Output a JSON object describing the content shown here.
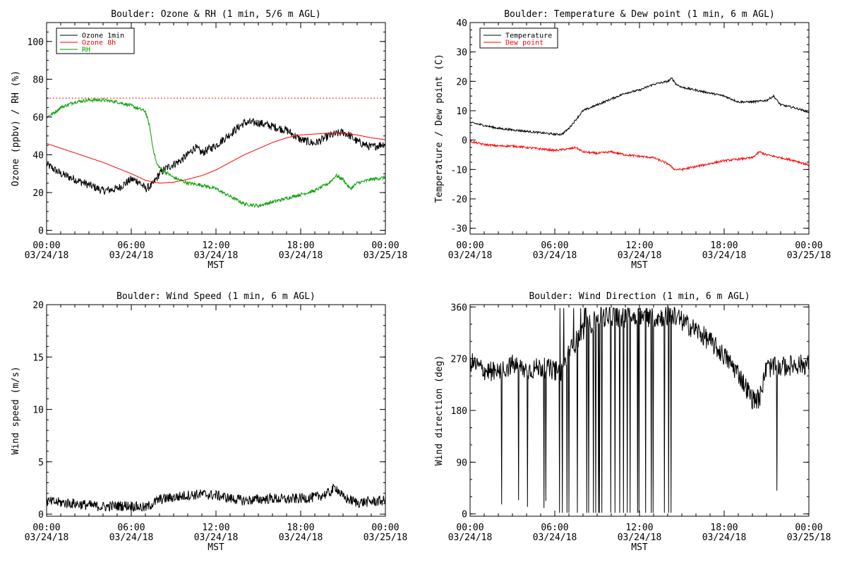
{
  "chart_data": [
    {
      "type": "line",
      "title": "Boulder: Ozone & RH (1 min, 5/6 m AGL)",
      "xlabel": "MST",
      "ylabel": "Ozone (ppbv) / RH (%)",
      "xticks": [
        [
          "00:00",
          "03/24/18"
        ],
        [
          "06:00",
          "03/24/18"
        ],
        [
          "12:00",
          "03/24/18"
        ],
        [
          "18:00",
          "03/24/18"
        ],
        [
          "00:00",
          "03/25/18"
        ]
      ],
      "xlim_hours": [
        0,
        24
      ],
      "ylim": [
        -2,
        110
      ],
      "yticks": [
        0,
        20,
        40,
        60,
        80,
        100
      ],
      "legend_position": "top-left",
      "reference_line": {
        "y": 70,
        "style": "dotted",
        "color": "#ff0000"
      },
      "series": [
        {
          "name": "Ozone 1min",
          "color": "#000000",
          "noise": 2.2,
          "x": [
            0,
            1,
            2,
            3,
            4,
            5,
            6,
            6.5,
            7,
            7.5,
            8,
            8.5,
            9,
            9.5,
            10,
            10.5,
            11,
            12,
            13,
            14,
            15,
            16,
            17,
            18,
            19,
            20,
            21,
            21.5,
            22,
            23,
            24
          ],
          "y": [
            35,
            30,
            27,
            24,
            21,
            22,
            27,
            26,
            22,
            24,
            30,
            33,
            35,
            37,
            40,
            44,
            41,
            45,
            51,
            57,
            57,
            55,
            53,
            48,
            46,
            50,
            52,
            50,
            47,
            44,
            46
          ]
        },
        {
          "name": "Ozone 8h",
          "color": "#ff0000",
          "noise": 0,
          "x": [
            0,
            2,
            4,
            6,
            7,
            8,
            9,
            10,
            11,
            12,
            14,
            16,
            17,
            18,
            20,
            21,
            22,
            23,
            24
          ],
          "y": [
            46,
            41,
            36,
            30,
            26.5,
            25,
            25.5,
            27,
            29,
            32,
            40,
            46.5,
            49,
            50.5,
            51.5,
            51.5,
            50.5,
            49,
            48
          ]
        },
        {
          "name": "RH",
          "color": "#00a000",
          "noise": 0.9,
          "x": [
            0,
            0.5,
            1,
            2,
            3,
            4,
            5,
            6,
            7,
            7.3,
            7.5,
            7.8,
            8.2,
            9,
            10,
            11,
            12,
            13,
            14,
            15,
            16,
            17,
            18,
            19,
            20,
            20.5,
            21,
            21.5,
            22,
            23,
            24
          ],
          "y": [
            60,
            62,
            65,
            68,
            69,
            69,
            68,
            66,
            63,
            55,
            45,
            35,
            32,
            28,
            25,
            24,
            22,
            18,
            14,
            13,
            15,
            17,
            19,
            21,
            25,
            29,
            27,
            22,
            25,
            27,
            28
          ]
        }
      ]
    },
    {
      "type": "line",
      "title": "Boulder: Temperature & Dew point (1 min, 6 m AGL)",
      "xlabel": "MST",
      "ylabel": "Temperature / Dew point (C)",
      "xticks": [
        [
          "00:00",
          "03/24/18"
        ],
        [
          "06:00",
          "03/24/18"
        ],
        [
          "12:00",
          "03/24/18"
        ],
        [
          "18:00",
          "03/24/18"
        ],
        [
          "00:00",
          "03/25/18"
        ]
      ],
      "xlim_hours": [
        0,
        24
      ],
      "ylim": [
        -32,
        40
      ],
      "yticks": [
        -30,
        -20,
        -10,
        0,
        10,
        20,
        30,
        40
      ],
      "legend_position": "top-left",
      "series": [
        {
          "name": "Temperature",
          "color": "#000000",
          "noise": 0.35,
          "x": [
            0,
            1,
            2,
            3,
            4,
            5,
            6,
            6.5,
            7,
            7.5,
            8,
            9,
            10,
            11,
            12,
            13,
            14,
            14.3,
            14.6,
            15,
            16,
            17,
            18,
            19,
            20,
            21,
            21.5,
            22,
            23,
            24
          ],
          "y": [
            6,
            5,
            4,
            3.5,
            3,
            2.5,
            2,
            2,
            4,
            7,
            10,
            12,
            14,
            16,
            17,
            19,
            20,
            21,
            19,
            18,
            17,
            16,
            15,
            13,
            13,
            13.5,
            15,
            12,
            11,
            9.5
          ]
        },
        {
          "name": "Dew point",
          "color": "#ff0000",
          "noise": 0.35,
          "x": [
            0,
            1,
            2,
            3,
            4,
            5,
            6,
            7,
            7.5,
            8,
            9,
            10,
            11,
            12,
            13,
            14,
            14.5,
            15,
            16,
            17,
            18,
            19,
            20,
            20.5,
            21,
            22,
            23,
            24
          ],
          "y": [
            -0.5,
            -1.5,
            -2,
            -2,
            -2.5,
            -3,
            -3.5,
            -3,
            -2.5,
            -4,
            -4.5,
            -4,
            -5,
            -5.5,
            -6,
            -8,
            -10,
            -10,
            -9,
            -8,
            -7,
            -6.5,
            -6,
            -4,
            -5,
            -6,
            -7,
            -8.5
          ]
        }
      ]
    },
    {
      "type": "line",
      "title": "Boulder: Wind Speed (1 min, 6 m AGL)",
      "xlabel": "MST",
      "ylabel": "Wind speed (m/s)",
      "xticks": [
        [
          "00:00",
          "03/24/18"
        ],
        [
          "06:00",
          "03/24/18"
        ],
        [
          "12:00",
          "03/24/18"
        ],
        [
          "18:00",
          "03/24/18"
        ],
        [
          "00:00",
          "03/25/18"
        ]
      ],
      "xlim_hours": [
        0,
        24
      ],
      "ylim": [
        -0.2,
        20
      ],
      "yticks": [
        0,
        5,
        10,
        15,
        20
      ],
      "series": [
        {
          "name": "",
          "color": "#000000",
          "noise": 0.5,
          "x": [
            0,
            2,
            4,
            5,
            6,
            6.5,
            7,
            8,
            9,
            10,
            11,
            12,
            13,
            14,
            15,
            16,
            17,
            18,
            19,
            20,
            20.5,
            21,
            22,
            23,
            24
          ],
          "y": [
            1.2,
            1.0,
            0.7,
            0.8,
            0.8,
            0.7,
            0.6,
            1.4,
            1.6,
            1.8,
            1.9,
            1.8,
            1.5,
            1.3,
            1.4,
            1.5,
            1.4,
            1.5,
            1.6,
            2.0,
            2.6,
            1.6,
            1.1,
            1.2,
            1.3
          ]
        }
      ]
    },
    {
      "type": "line",
      "title": "Boulder: Wind Direction (1 min, 6 m AGL)",
      "xlabel": "MST",
      "ylabel": "Wind direction (deg)",
      "xticks": [
        [
          "00:00",
          "03/24/18"
        ],
        [
          "06:00",
          "03/24/18"
        ],
        [
          "12:00",
          "03/24/18"
        ],
        [
          "18:00",
          "03/24/18"
        ],
        [
          "00:00",
          "03/25/18"
        ]
      ],
      "xlim_hours": [
        0,
        24
      ],
      "ylim": [
        -4,
        364
      ],
      "yticks": [
        0,
        90,
        180,
        270,
        360
      ],
      "series": [
        {
          "name": "",
          "color": "#000000",
          "noise": 18,
          "x": [
            0,
            1,
            2,
            3,
            4,
            5,
            6,
            6.5,
            7,
            8,
            9,
            10,
            11,
            12,
            13,
            14,
            14.5,
            15,
            16,
            17,
            18,
            19,
            20,
            20.5,
            21,
            22,
            23,
            24
          ],
          "y": [
            265,
            250,
            245,
            260,
            250,
            255,
            250,
            245,
            280,
            320,
            340,
            345,
            340,
            345,
            340,
            345,
            345,
            335,
            320,
            300,
            275,
            245,
            200,
            200,
            255,
            255,
            260,
            260
          ]
        }
      ]
    }
  ]
}
